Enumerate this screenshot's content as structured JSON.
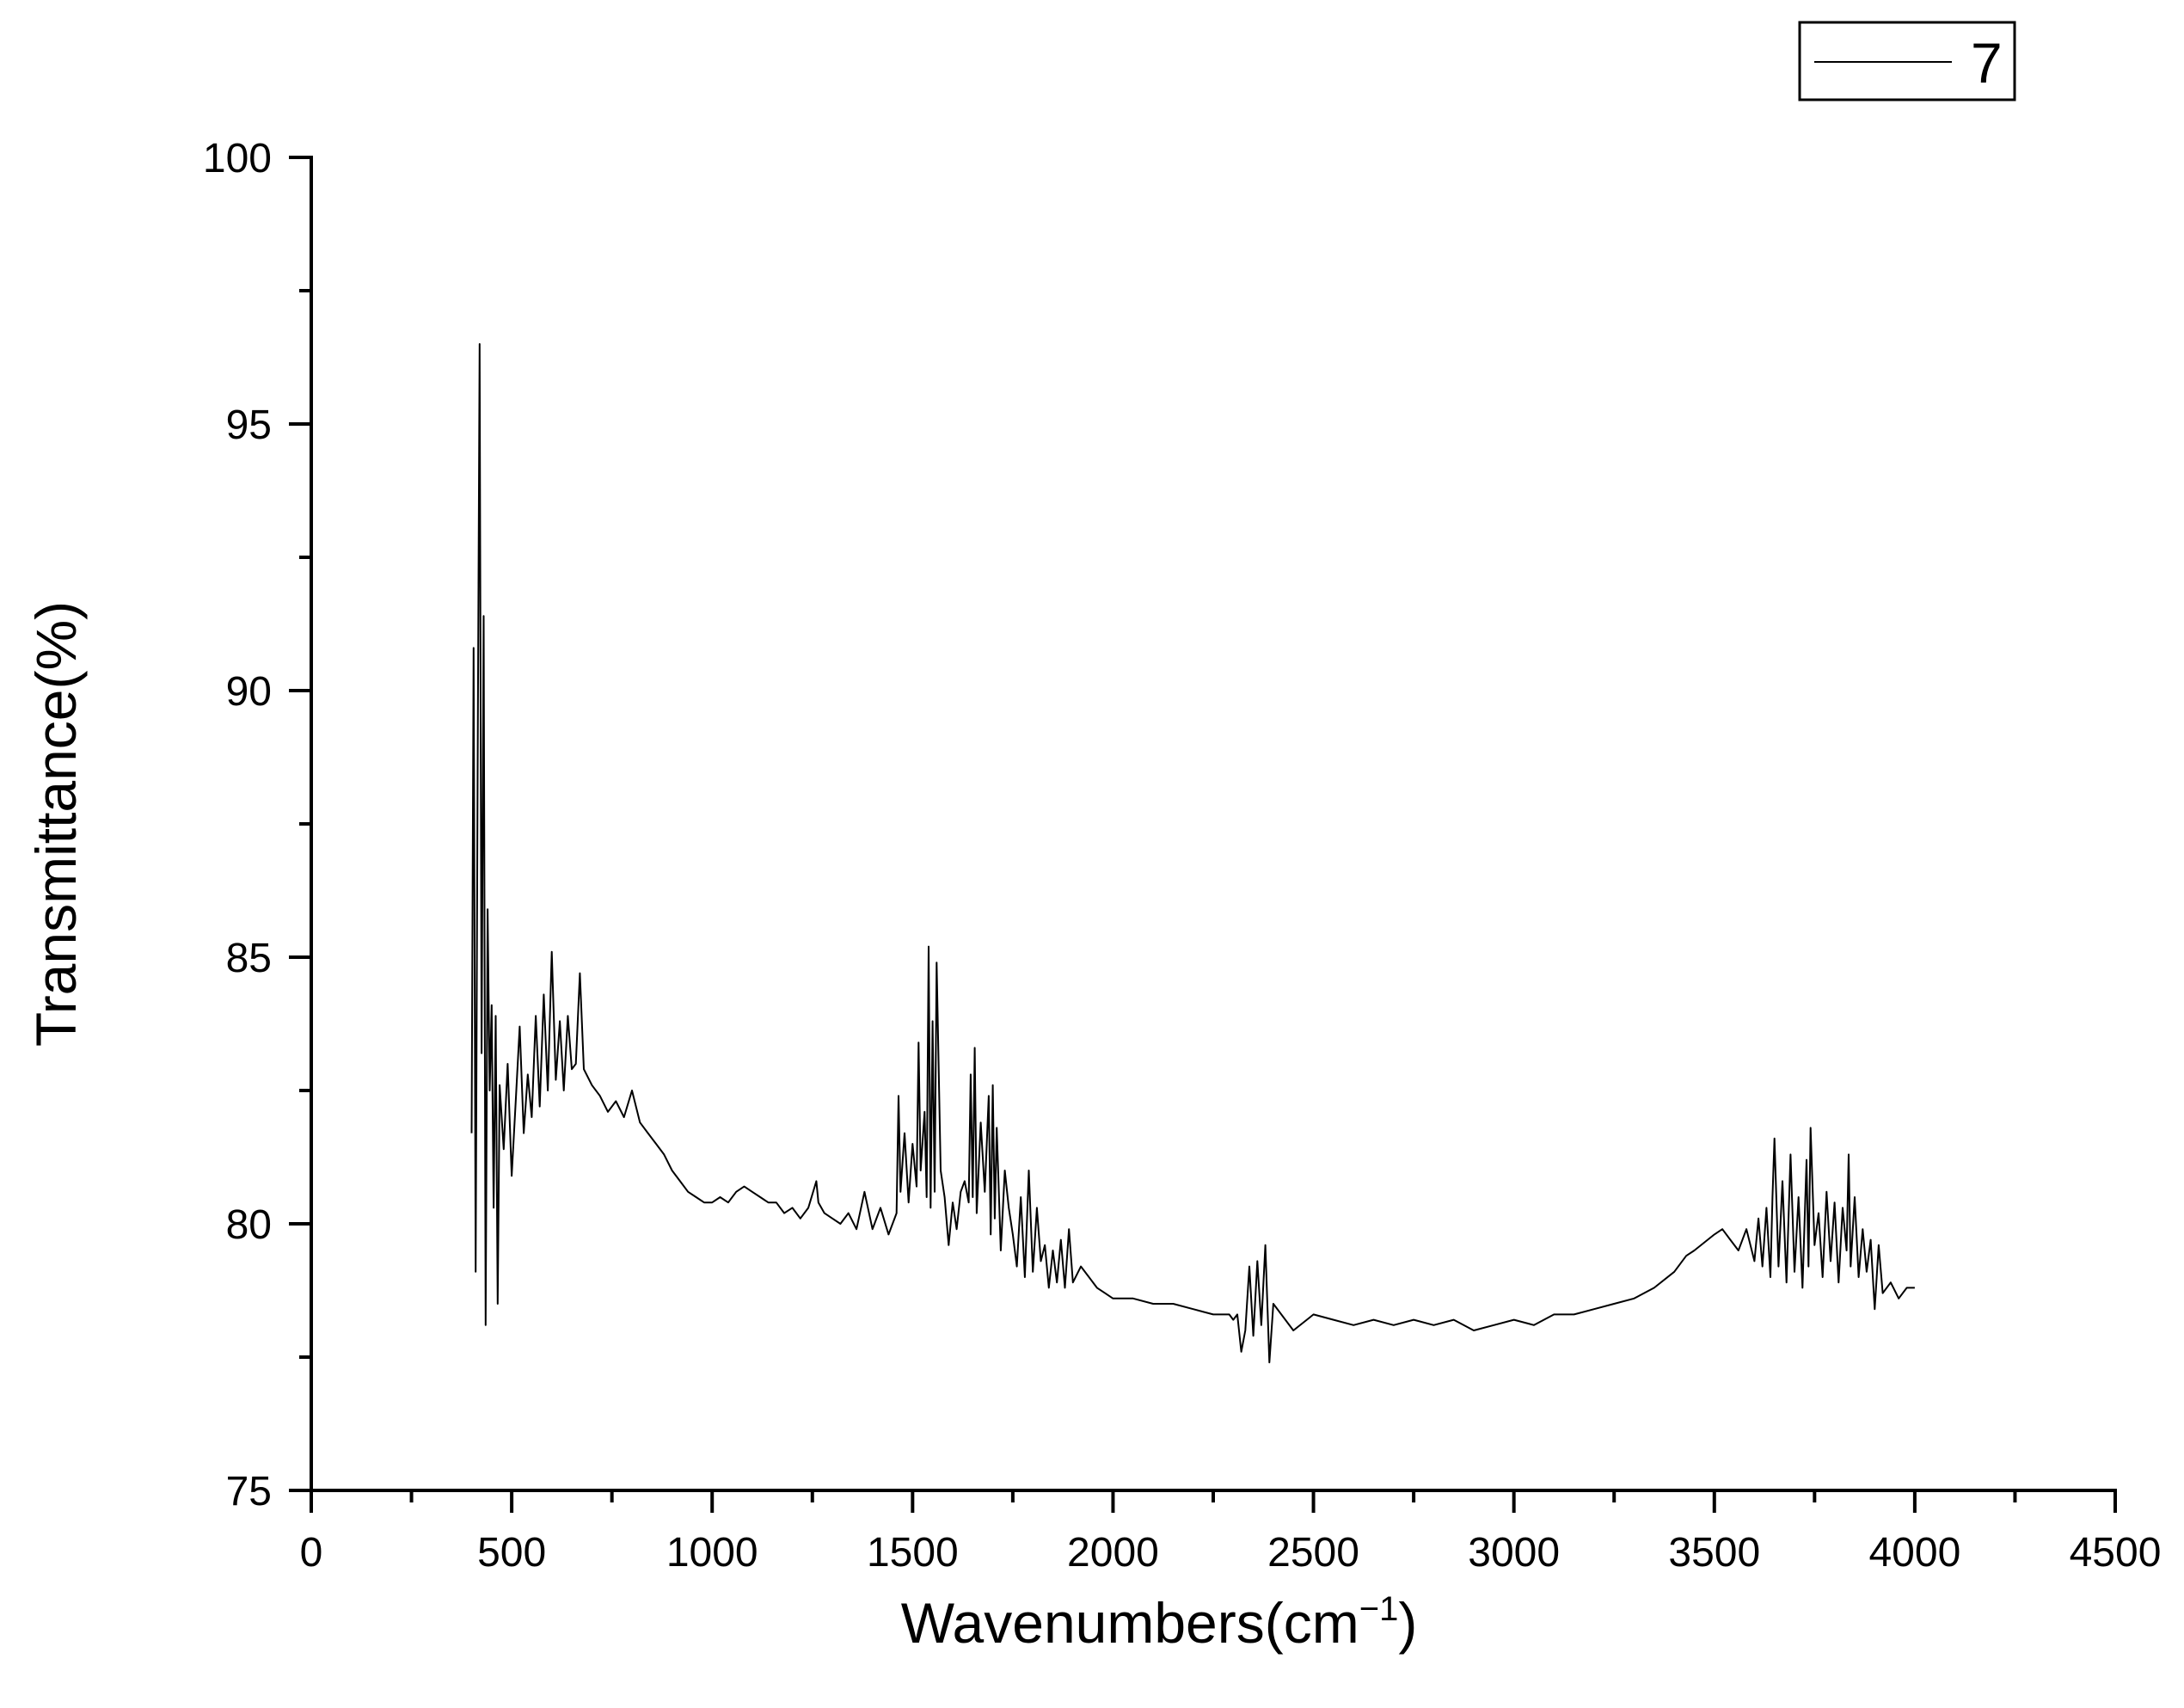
{
  "chart_data": {
    "type": "line",
    "title": "",
    "xlabel": "Wavenumbers(cm",
    "xlabel_sup": "−1",
    "xlabel_end": ")",
    "ylabel": "Transmittance(%)",
    "xlim": [
      0,
      4500
    ],
    "ylim": [
      75,
      100
    ],
    "x_ticks": [
      0,
      500,
      1000,
      1500,
      2000,
      2500,
      3000,
      3500,
      4000,
      4500
    ],
    "x_tick_labels": [
      "0",
      "500",
      "1000",
      "1500",
      "2000",
      "2500",
      "3000",
      "3500",
      "4000",
      "4500"
    ],
    "x_minor_ticks": [
      250,
      750,
      1250,
      1750,
      2250,
      2750,
      3250,
      3750,
      4250
    ],
    "y_ticks": [
      75,
      80,
      85,
      90,
      95,
      100
    ],
    "y_tick_labels": [
      "75",
      "80",
      "85",
      "90",
      "95",
      "100"
    ],
    "y_minor_ticks": [
      77.5,
      82.5,
      87.5,
      92.5,
      97.5
    ],
    "grid": false,
    "legend_position": "top-right",
    "line_color": "#000000",
    "series": [
      {
        "name": "7",
        "x": [
          400,
          405,
          410,
          415,
          420,
          425,
          430,
          435,
          440,
          445,
          450,
          455,
          460,
          465,
          470,
          480,
          490,
          500,
          510,
          520,
          530,
          540,
          550,
          560,
          570,
          580,
          590,
          600,
          610,
          620,
          630,
          640,
          650,
          660,
          670,
          680,
          700,
          720,
          740,
          760,
          780,
          800,
          820,
          840,
          860,
          880,
          900,
          920,
          940,
          960,
          980,
          1000,
          1020,
          1040,
          1060,
          1080,
          1100,
          1120,
          1140,
          1160,
          1180,
          1200,
          1220,
          1240,
          1260,
          1265,
          1280,
          1300,
          1320,
          1340,
          1360,
          1380,
          1400,
          1420,
          1440,
          1460,
          1465,
          1470,
          1480,
          1490,
          1500,
          1510,
          1515,
          1520,
          1530,
          1535,
          1540,
          1545,
          1550,
          1555,
          1560,
          1570,
          1580,
          1590,
          1600,
          1610,
          1620,
          1630,
          1640,
          1645,
          1650,
          1655,
          1660,
          1670,
          1680,
          1690,
          1695,
          1700,
          1705,
          1710,
          1720,
          1730,
          1740,
          1750,
          1760,
          1770,
          1780,
          1790,
          1800,
          1810,
          1820,
          1830,
          1840,
          1850,
          1860,
          1870,
          1880,
          1890,
          1900,
          1920,
          1940,
          1960,
          1980,
          2000,
          2050,
          2100,
          2150,
          2200,
          2250,
          2290,
          2300,
          2310,
          2320,
          2330,
          2340,
          2350,
          2360,
          2370,
          2380,
          2390,
          2400,
          2450,
          2500,
          2550,
          2600,
          2650,
          2700,
          2750,
          2800,
          2850,
          2900,
          2950,
          3000,
          3050,
          3100,
          3150,
          3200,
          3250,
          3300,
          3350,
          3400,
          3430,
          3450,
          3500,
          3520,
          3540,
          3560,
          3580,
          3600,
          3610,
          3620,
          3630,
          3640,
          3645,
          3650,
          3660,
          3670,
          3680,
          3690,
          3700,
          3710,
          3720,
          3730,
          3735,
          3740,
          3750,
          3760,
          3770,
          3780,
          3790,
          3800,
          3810,
          3820,
          3830,
          3835,
          3840,
          3850,
          3860,
          3870,
          3880,
          3890,
          3900,
          3910,
          3920,
          3940,
          3960,
          3980,
          4000
        ],
        "y": [
          81.7,
          90.8,
          79.1,
          88.5,
          96.5,
          83.2,
          91.4,
          78.1,
          85.9,
          82.5,
          84.1,
          80.3,
          83.9,
          78.5,
          82.6,
          81.4,
          83.0,
          80.9,
          82.3,
          83.7,
          81.7,
          82.8,
          82.0,
          83.9,
          82.2,
          84.3,
          82.5,
          85.1,
          82.7,
          83.8,
          82.5,
          83.9,
          82.9,
          83.0,
          84.7,
          82.9,
          82.6,
          82.4,
          82.1,
          82.3,
          82.0,
          82.5,
          81.9,
          81.7,
          81.5,
          81.3,
          81.0,
          80.8,
          80.6,
          80.5,
          80.4,
          80.4,
          80.5,
          80.4,
          80.6,
          80.7,
          80.6,
          80.5,
          80.4,
          80.4,
          80.2,
          80.3,
          80.1,
          80.3,
          80.8,
          80.4,
          80.2,
          80.1,
          80.0,
          80.2,
          79.9,
          80.6,
          79.9,
          80.3,
          79.8,
          80.2,
          82.4,
          80.6,
          81.7,
          80.4,
          81.5,
          80.7,
          83.4,
          81.0,
          82.1,
          80.5,
          85.2,
          80.3,
          83.8,
          80.6,
          84.9,
          81.0,
          80.5,
          79.6,
          80.4,
          79.9,
          80.6,
          80.8,
          80.4,
          82.8,
          80.5,
          83.3,
          80.2,
          81.9,
          80.6,
          82.4,
          79.8,
          82.6,
          80.1,
          81.8,
          79.5,
          81.0,
          80.3,
          79.8,
          79.2,
          80.5,
          79.0,
          81.0,
          79.1,
          80.3,
          79.3,
          79.6,
          78.8,
          79.5,
          78.9,
          79.7,
          78.8,
          79.9,
          78.9,
          79.2,
          79.0,
          78.8,
          78.7,
          78.6,
          78.6,
          78.5,
          78.5,
          78.4,
          78.3,
          78.3,
          78.2,
          78.3,
          77.6,
          78.0,
          79.2,
          77.9,
          79.3,
          78.1,
          79.6,
          77.4,
          78.5,
          78.0,
          78.3,
          78.2,
          78.1,
          78.2,
          78.1,
          78.2,
          78.1,
          78.2,
          78.0,
          78.1,
          78.2,
          78.1,
          78.3,
          78.3,
          78.4,
          78.5,
          78.6,
          78.8,
          79.1,
          79.4,
          79.5,
          79.8,
          79.9,
          79.7,
          79.5,
          79.9,
          79.3,
          80.1,
          79.2,
          80.3,
          79.0,
          80.5,
          81.6,
          79.2,
          80.8,
          78.9,
          81.3,
          79.1,
          80.5,
          78.8,
          81.2,
          79.2,
          81.8,
          79.6,
          80.2,
          79.0,
          80.6,
          79.3,
          80.4,
          78.9,
          80.3,
          79.5,
          81.3,
          79.2,
          80.5,
          79.0,
          79.9,
          79.1,
          79.7,
          78.4,
          79.6,
          78.7,
          78.9,
          78.6,
          78.8,
          78.8
        ]
      }
    ]
  }
}
